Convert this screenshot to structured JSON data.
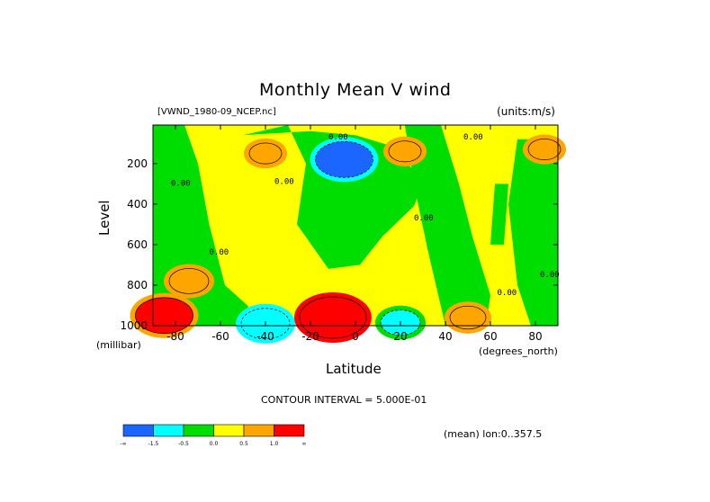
{
  "chart_data": {
    "type": "heatmap",
    "title": "Monthly Mean V wind",
    "subtitle_left": "[VWND_1980-09_NCEP.nc]",
    "subtitle_right": "(units:m/s)",
    "xlabel": "Latitude",
    "ylabel": "Level",
    "x_unit": "(degrees_north)",
    "y_unit": "(millibar)",
    "xlim": [
      -90,
      90
    ],
    "ylim": [
      1000,
      10
    ],
    "x_ticks": [
      -80,
      -60,
      -40,
      -20,
      0,
      20,
      40,
      60,
      80
    ],
    "y_ticks": [
      200,
      400,
      600,
      800,
      1000
    ],
    "contour_interval_text": "CONTOUR INTERVAL = 5.000E-01",
    "mean_text": "(mean) lon:0..357.5",
    "contour_label": "0.00",
    "colorbar": {
      "labels": [
        "-∞",
        "-1.5",
        "-0.5",
        "0.0",
        "0.5",
        "1.0",
        "∞"
      ],
      "colors": [
        "#1a66ff",
        "#00ffff",
        "#00dd00",
        "#ffff00",
        "#ffa500",
        "#ff0000"
      ]
    },
    "features": [
      {
        "lat": -5,
        "level": 180,
        "value": -2.0
      },
      {
        "lat": -40,
        "level": 990,
        "value": -1.5
      },
      {
        "lat": 20,
        "level": 985,
        "value": -1.0
      },
      {
        "lat": -10,
        "level": 960,
        "value": 2.5
      },
      {
        "lat": -85,
        "level": 950,
        "value": 2.0
      },
      {
        "lat": -74,
        "level": 780,
        "value": 1.0
      },
      {
        "lat": 50,
        "level": 960,
        "value": 0.8
      },
      {
        "lat": -40,
        "level": 150,
        "value": 0.6
      },
      {
        "lat": 22,
        "level": 140,
        "value": 0.6
      },
      {
        "lat": 84,
        "level": 130,
        "value": 0.6
      }
    ]
  }
}
